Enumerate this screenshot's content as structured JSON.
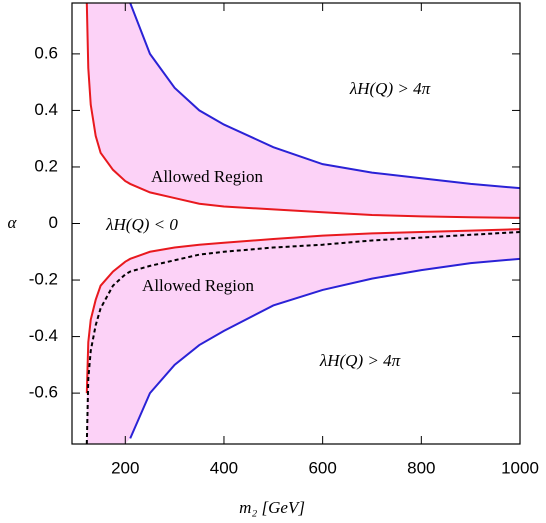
{
  "chart_data": {
    "type": "line",
    "x_label": "m₂ [GeV]",
    "y_label": "α",
    "x": [
      122,
      125,
      130,
      140,
      150,
      175,
      200,
      210,
      250,
      300,
      350,
      400,
      500,
      600,
      700,
      800,
      900,
      1000
    ],
    "series": [
      {
        "color": "#e8191e",
        "values": [
          0.78,
          0.55,
          0.42,
          0.31,
          0.25,
          0.19,
          0.15,
          0.14,
          0.11,
          0.09,
          0.07,
          0.06,
          0.05,
          0.04,
          0.03,
          0.025,
          0.022,
          0.02
        ]
      },
      {
        "color": "#2a22d6",
        "values": [
          null,
          null,
          null,
          null,
          null,
          null,
          null,
          0.78,
          0.6,
          0.48,
          0.4,
          0.35,
          0.27,
          0.21,
          0.18,
          0.16,
          0.14,
          0.125
        ]
      },
      {
        "color": "#e8191e",
        "values": [
          -0.6,
          -0.42,
          -0.34,
          -0.27,
          -0.22,
          -0.17,
          -0.135,
          -0.125,
          -0.1,
          -0.085,
          -0.075,
          -0.068,
          -0.055,
          -0.043,
          -0.035,
          -0.03,
          -0.025,
          -0.02
        ]
      },
      {
        "color": "#2a22d6",
        "values": [
          null,
          null,
          null,
          null,
          null,
          null,
          null,
          -0.76,
          -0.6,
          -0.5,
          -0.43,
          -0.38,
          -0.29,
          -0.235,
          -0.195,
          -0.165,
          -0.14,
          -0.125
        ]
      },
      {
        "color": "#000000",
        "dashed": true,
        "values": [
          -0.78,
          -0.55,
          -0.45,
          -0.36,
          -0.3,
          -0.22,
          -0.18,
          -0.17,
          -0.15,
          -0.13,
          -0.11,
          -0.1,
          -0.085,
          -0.075,
          -0.06,
          -0.05,
          -0.04,
          -0.03
        ]
      }
    ],
    "fill_color": "#fcd2f7",
    "annotations": [
      "λH(Q) > 4π",
      "Allowed Region",
      "λH(Q) < 0",
      "Allowed Region",
      "λH(Q) > 4π"
    ],
    "xlim": [
      92,
      1000
    ],
    "xticks": [
      200,
      400,
      600,
      800,
      1000
    ],
    "ylim": [
      -0.78,
      0.78
    ],
    "yticks": [
      -0.6,
      -0.4,
      -0.2,
      0,
      0.2,
      0.4,
      0.6
    ]
  }
}
